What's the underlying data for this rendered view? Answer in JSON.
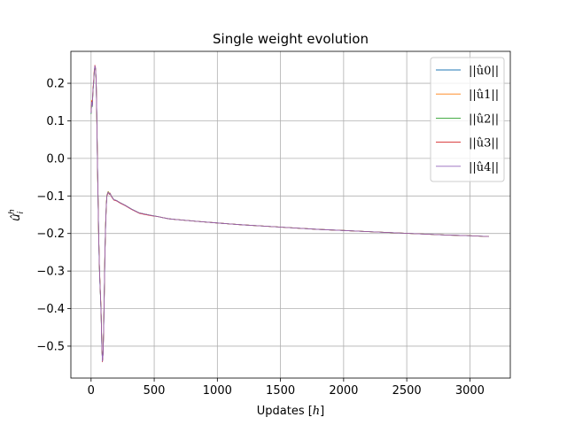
{
  "chart_data": {
    "type": "line",
    "title": "Single weight evolution",
    "xlabel": "Updates [h]",
    "ylabel": "û_i^h",
    "xlim": [
      -160,
      3320
    ],
    "ylim": [
      -0.585,
      0.285
    ],
    "xticks": [
      0,
      500,
      1000,
      1500,
      2000,
      2500,
      3000
    ],
    "yticks": [
      -0.5,
      -0.4,
      -0.3,
      -0.2,
      -0.1,
      0.0,
      0.1,
      0.2
    ],
    "ytick_labels": [
      "−0.5",
      "−0.4",
      "−0.3",
      "−0.2",
      "−0.1",
      "0.0",
      "0.1",
      "0.2"
    ],
    "grid": true,
    "legend_position": "top-right",
    "series": [
      {
        "name": "||û0||",
        "color": "#1f77b4",
        "x": [
          0,
          5,
          10,
          15,
          20,
          25,
          30,
          35,
          40,
          45,
          50,
          55,
          60,
          65,
          70,
          75,
          80,
          85,
          90,
          95,
          100,
          105,
          110,
          115,
          120,
          125,
          130,
          135,
          140,
          145,
          150,
          160,
          170,
          180,
          200,
          230,
          270,
          320,
          380,
          420,
          480,
          530,
          570,
          620,
          680,
          750,
          850,
          1000,
          1200,
          1400,
          1600,
          1800,
          2000,
          2200,
          2400,
          2600,
          2800,
          3000,
          3150
        ],
        "y": [
          0.12,
          0.15,
          0.14,
          0.18,
          0.2,
          0.23,
          0.245,
          0.24,
          0.21,
          0.12,
          0.0,
          -0.1,
          -0.2,
          -0.28,
          -0.33,
          -0.37,
          -0.42,
          -0.5,
          -0.54,
          -0.52,
          -0.45,
          -0.35,
          -0.25,
          -0.18,
          -0.13,
          -0.1,
          -0.095,
          -0.09,
          -0.092,
          -0.095,
          -0.093,
          -0.1,
          -0.105,
          -0.11,
          -0.112,
          -0.118,
          -0.125,
          -0.135,
          -0.145,
          -0.148,
          -0.152,
          -0.155,
          -0.158,
          -0.161,
          -0.163,
          -0.165,
          -0.168,
          -0.172,
          -0.177,
          -0.181,
          -0.185,
          -0.189,
          -0.192,
          -0.195,
          -0.198,
          -0.201,
          -0.204,
          -0.206,
          -0.208
        ]
      },
      {
        "name": "||û1||",
        "color": "#ff7f0e",
        "x": [
          0,
          5,
          10,
          15,
          20,
          25,
          30,
          35,
          40,
          45,
          50,
          55,
          60,
          65,
          70,
          75,
          80,
          85,
          90,
          95,
          100,
          105,
          110,
          115,
          120,
          125,
          130,
          135,
          140,
          145,
          150,
          160,
          170,
          180,
          200,
          230,
          270,
          320,
          380,
          420,
          480,
          530,
          570,
          620,
          680,
          750,
          850,
          1000,
          1200,
          1400,
          1600,
          1800,
          2000,
          2200,
          2400,
          2600,
          2800,
          3000,
          3150
        ],
        "y": [
          0.125,
          0.155,
          0.145,
          0.185,
          0.205,
          0.235,
          0.24,
          0.235,
          0.205,
          0.115,
          -0.005,
          -0.105,
          -0.205,
          -0.275,
          -0.325,
          -0.365,
          -0.415,
          -0.495,
          -0.535,
          -0.515,
          -0.445,
          -0.345,
          -0.245,
          -0.175,
          -0.125,
          -0.098,
          -0.093,
          -0.088,
          -0.09,
          -0.094,
          -0.092,
          -0.1,
          -0.105,
          -0.11,
          -0.112,
          -0.118,
          -0.125,
          -0.135,
          -0.145,
          -0.148,
          -0.152,
          -0.155,
          -0.158,
          -0.161,
          -0.163,
          -0.165,
          -0.168,
          -0.172,
          -0.177,
          -0.181,
          -0.185,
          -0.189,
          -0.192,
          -0.195,
          -0.198,
          -0.201,
          -0.204,
          -0.206,
          -0.208
        ]
      },
      {
        "name": "||û2||",
        "color": "#2ca02c",
        "x": [
          0,
          5,
          10,
          15,
          20,
          25,
          30,
          35,
          40,
          45,
          50,
          55,
          60,
          65,
          70,
          75,
          80,
          85,
          90,
          95,
          100,
          105,
          110,
          115,
          120,
          125,
          130,
          135,
          140,
          145,
          150,
          160,
          170,
          180,
          200,
          230,
          270,
          320,
          380,
          420,
          480,
          530,
          570,
          620,
          680,
          750,
          850,
          1000,
          1200,
          1400,
          1600,
          1800,
          2000,
          2200,
          2400,
          2600,
          2800,
          3000,
          3150
        ],
        "y": [
          0.118,
          0.148,
          0.138,
          0.178,
          0.198,
          0.228,
          0.243,
          0.238,
          0.208,
          0.118,
          -0.002,
          -0.102,
          -0.202,
          -0.282,
          -0.332,
          -0.372,
          -0.422,
          -0.502,
          -0.538,
          -0.518,
          -0.448,
          -0.348,
          -0.248,
          -0.178,
          -0.128,
          -0.1,
          -0.094,
          -0.089,
          -0.091,
          -0.095,
          -0.093,
          -0.1,
          -0.105,
          -0.11,
          -0.112,
          -0.118,
          -0.125,
          -0.135,
          -0.145,
          -0.148,
          -0.152,
          -0.155,
          -0.158,
          -0.161,
          -0.163,
          -0.165,
          -0.168,
          -0.172,
          -0.177,
          -0.181,
          -0.185,
          -0.189,
          -0.192,
          -0.195,
          -0.198,
          -0.201,
          -0.204,
          -0.206,
          -0.208
        ]
      },
      {
        "name": "||û3||",
        "color": "#d62728",
        "x": [
          0,
          5,
          10,
          15,
          20,
          25,
          30,
          35,
          40,
          45,
          50,
          55,
          60,
          65,
          70,
          75,
          80,
          85,
          90,
          95,
          100,
          105,
          110,
          115,
          120,
          125,
          130,
          135,
          140,
          145,
          150,
          160,
          170,
          180,
          200,
          230,
          270,
          320,
          380,
          420,
          480,
          530,
          570,
          620,
          680,
          750,
          850,
          1000,
          1200,
          1400,
          1600,
          1800,
          2000,
          2200,
          2400,
          2600,
          2800,
          3000,
          3150
        ],
        "y": [
          0.122,
          0.152,
          0.142,
          0.182,
          0.202,
          0.232,
          0.248,
          0.242,
          0.212,
          0.122,
          0.002,
          -0.098,
          -0.198,
          -0.278,
          -0.328,
          -0.368,
          -0.418,
          -0.498,
          -0.542,
          -0.522,
          -0.452,
          -0.352,
          -0.252,
          -0.182,
          -0.132,
          -0.102,
          -0.096,
          -0.091,
          -0.093,
          -0.096,
          -0.094,
          -0.101,
          -0.106,
          -0.111,
          -0.113,
          -0.119,
          -0.126,
          -0.136,
          -0.146,
          -0.149,
          -0.153,
          -0.155,
          -0.158,
          -0.161,
          -0.163,
          -0.165,
          -0.168,
          -0.172,
          -0.177,
          -0.181,
          -0.185,
          -0.189,
          -0.192,
          -0.195,
          -0.198,
          -0.201,
          -0.204,
          -0.206,
          -0.208
        ]
      },
      {
        "name": "||û4||",
        "color": "#9467bd",
        "x": [
          0,
          5,
          10,
          15,
          20,
          25,
          30,
          35,
          40,
          45,
          50,
          55,
          60,
          65,
          70,
          75,
          80,
          85,
          90,
          95,
          100,
          105,
          110,
          115,
          120,
          125,
          130,
          135,
          140,
          145,
          150,
          160,
          170,
          180,
          200,
          230,
          270,
          320,
          380,
          420,
          480,
          530,
          570,
          620,
          680,
          750,
          850,
          1000,
          1200,
          1400,
          1600,
          1800,
          2000,
          2200,
          2400,
          2600,
          2800,
          3000,
          3150
        ],
        "y": [
          0.12,
          0.15,
          0.14,
          0.18,
          0.2,
          0.23,
          0.246,
          0.24,
          0.21,
          0.12,
          0.0,
          -0.1,
          -0.2,
          -0.28,
          -0.33,
          -0.37,
          -0.42,
          -0.5,
          -0.54,
          -0.52,
          -0.45,
          -0.35,
          -0.25,
          -0.18,
          -0.13,
          -0.101,
          -0.095,
          -0.09,
          -0.092,
          -0.095,
          -0.093,
          -0.1,
          -0.105,
          -0.11,
          -0.112,
          -0.118,
          -0.125,
          -0.135,
          -0.145,
          -0.148,
          -0.152,
          -0.155,
          -0.158,
          -0.161,
          -0.163,
          -0.165,
          -0.168,
          -0.172,
          -0.177,
          -0.181,
          -0.185,
          -0.189,
          -0.192,
          -0.195,
          -0.198,
          -0.201,
          -0.204,
          -0.206,
          -0.208
        ]
      }
    ]
  }
}
